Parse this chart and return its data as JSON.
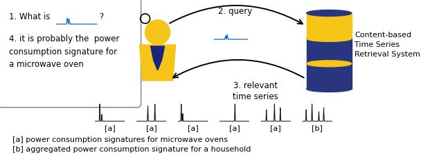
{
  "bg_color": "#ffffff",
  "box_text_line1": "1. What is",
  "box_text_line2": "4. it is probably the  power\nconsumption signature for\na microwave oven",
  "label_query": "2. query",
  "label_relevant": "3. relevant\ntime series",
  "db_label": "Content-based\nTime Series\nRetrieval System",
  "legend_a": "[a] power consumption signatures for microwave ovens",
  "legend_b": "[b] aggregated power consumption signature for a household",
  "person_color": "#F5C518",
  "person_tie_color": "#1a237e",
  "db_dark_color": "#2a3580",
  "db_light_color": "#F5C518",
  "arrow_color": "#000000",
  "ts_blue_color": "#1565C0",
  "ts_black_color": "#111111",
  "box_border_color": "#999999"
}
